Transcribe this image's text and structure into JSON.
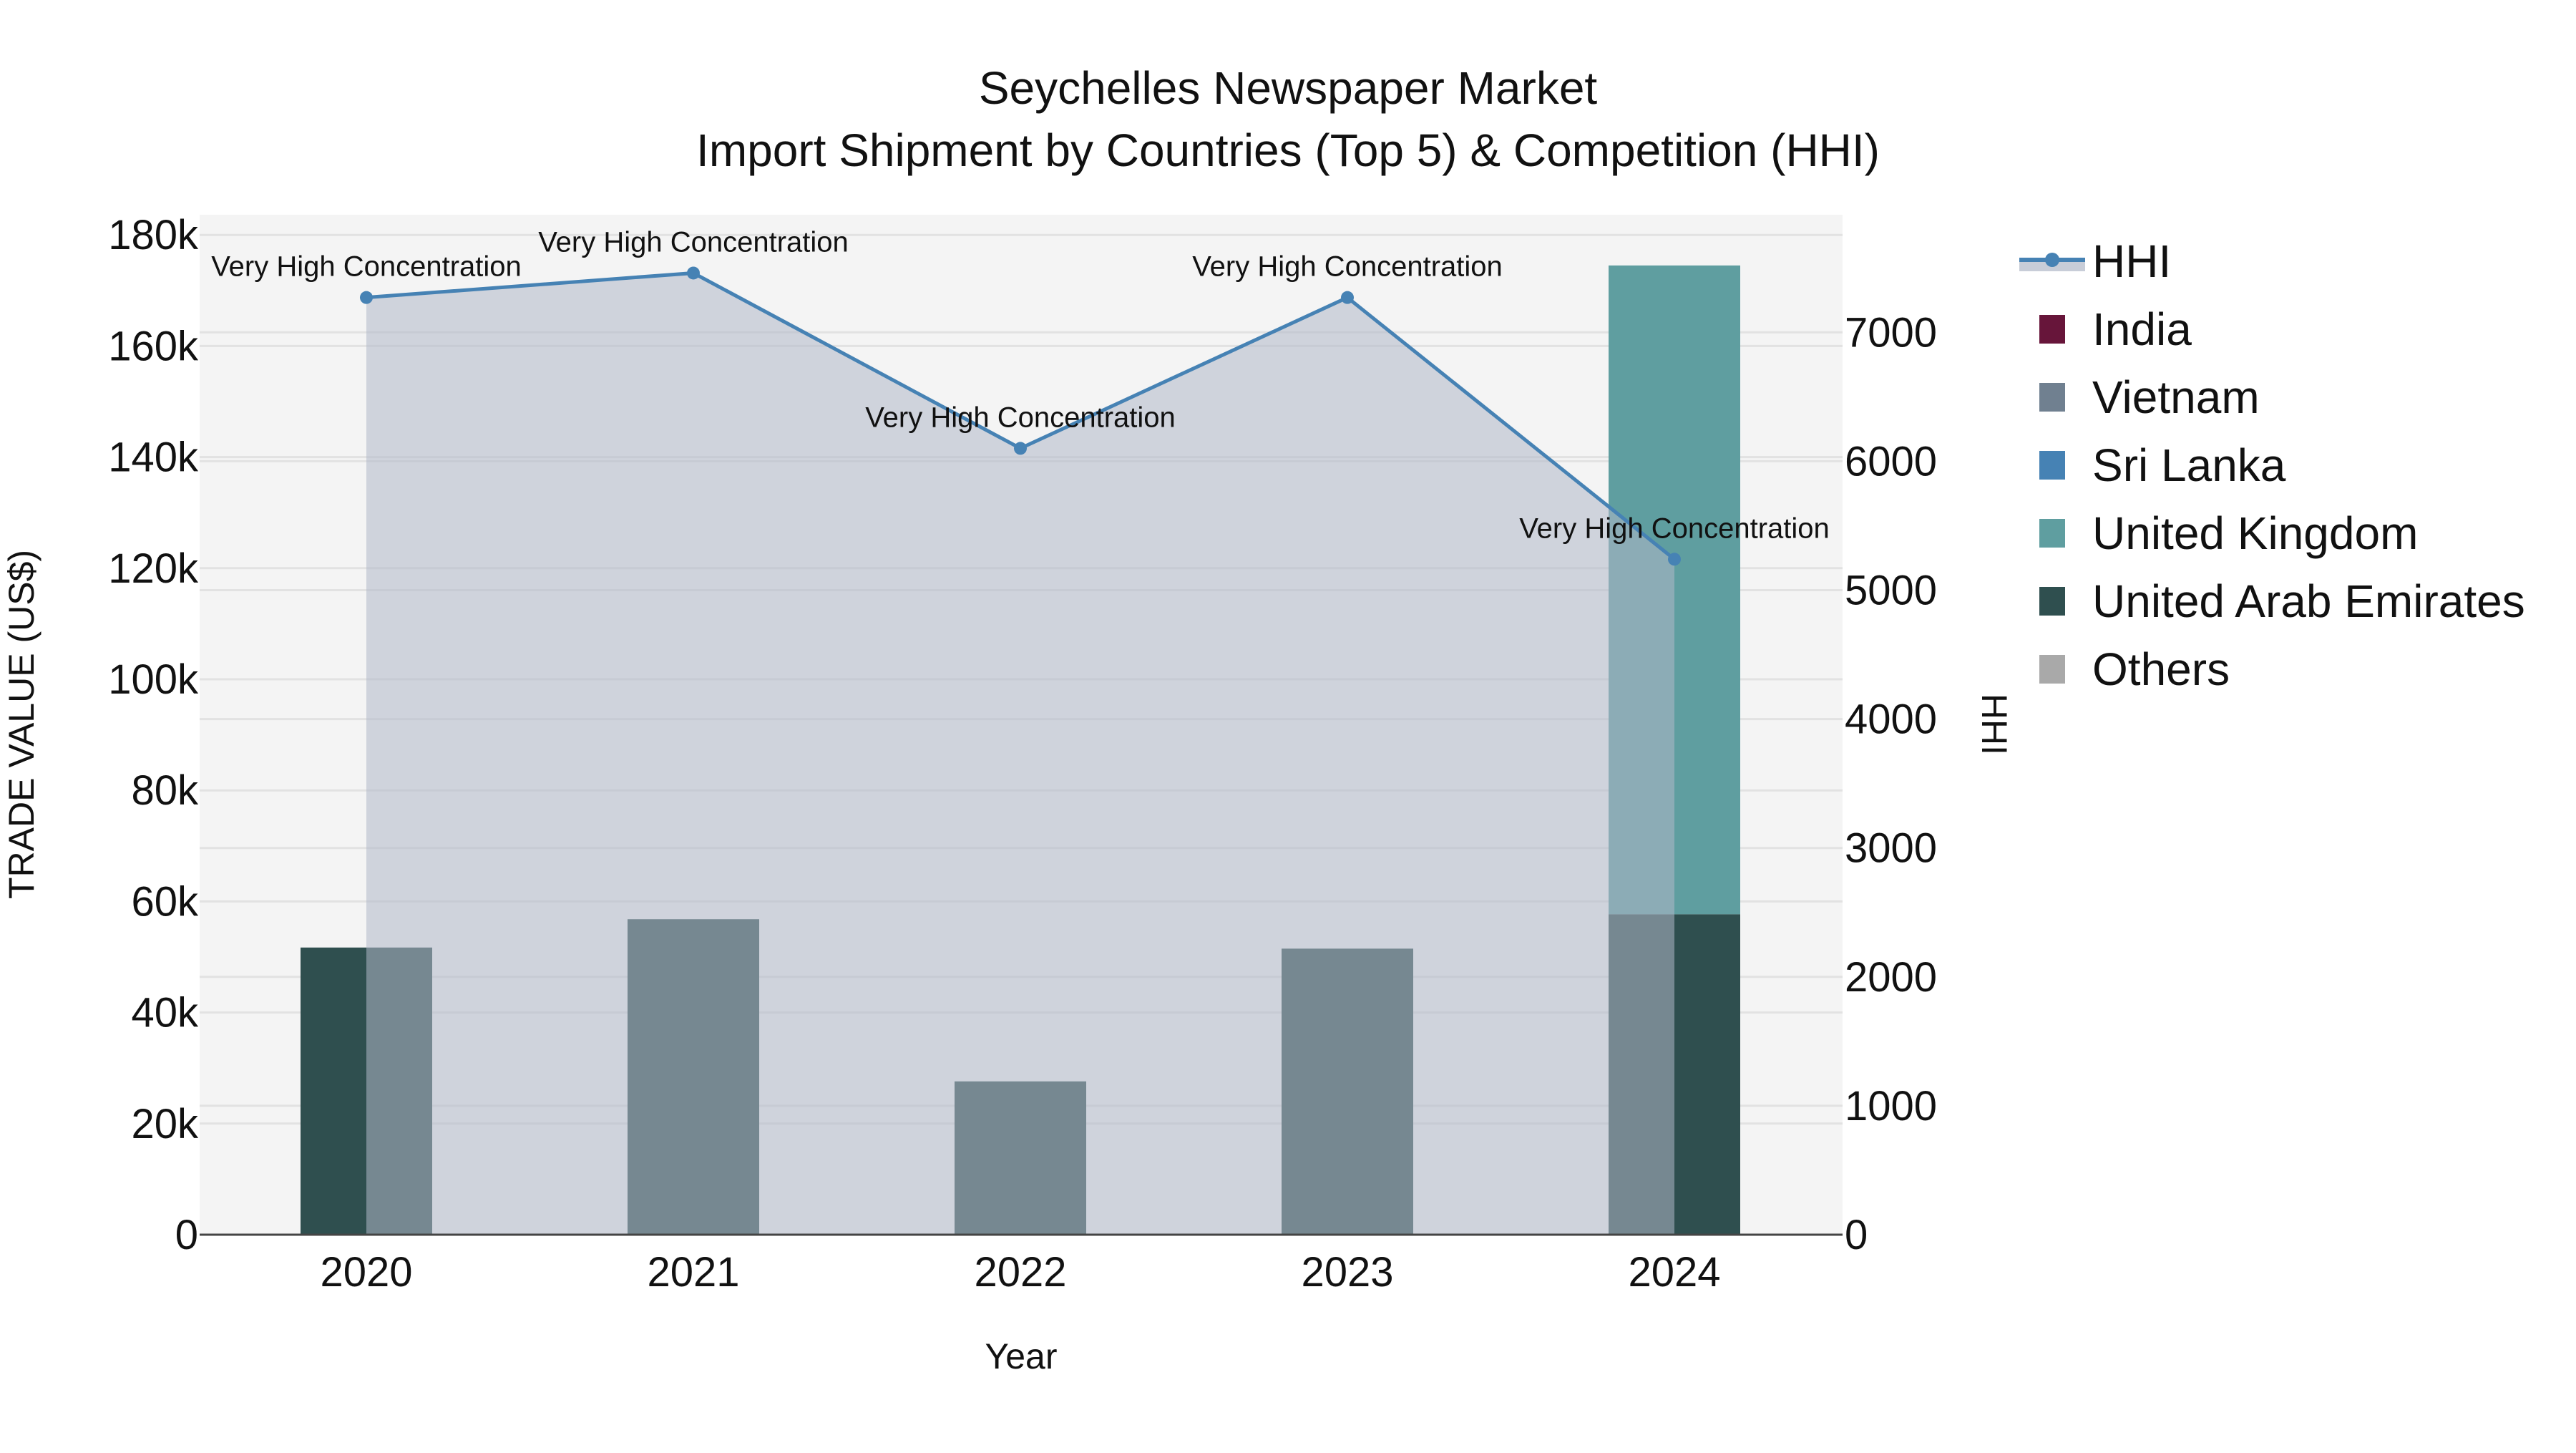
{
  "title": {
    "line1": "Seychelles Newspaper Market",
    "line2": "Import Shipment by Countries (Top 5) & Competition (HHI)"
  },
  "axes": {
    "x_label": "Year",
    "y_left_label": "TRADE VALUE (US$)",
    "y_right_label": "HHI",
    "x_ticks": [
      "2020",
      "2021",
      "2022",
      "2023",
      "2024"
    ],
    "y_left_ticks": [
      "0",
      "20k",
      "40k",
      "60k",
      "80k",
      "100k",
      "120k",
      "140k",
      "160k",
      "180k"
    ],
    "y_right_ticks": [
      "0",
      "1000",
      "2000",
      "3000",
      "4000",
      "5000",
      "6000",
      "7000"
    ]
  },
  "legend": {
    "items": [
      {
        "label": "HHI",
        "type": "line",
        "color": "#4682B4"
      },
      {
        "label": "India",
        "type": "bar",
        "color": "#67153A"
      },
      {
        "label": "Vietnam",
        "type": "bar",
        "color": "#708090"
      },
      {
        "label": "Sri Lanka",
        "type": "bar",
        "color": "#4682B4"
      },
      {
        "label": "United Kingdom",
        "type": "bar",
        "color": "#5F9EA0"
      },
      {
        "label": "United Arab Emirates",
        "type": "bar",
        "color": "#2F4F4F"
      },
      {
        "label": "Others",
        "type": "bar",
        "color": "#A9A9A9"
      }
    ]
  },
  "annotations": [
    "Very High Concentration",
    "Very High Concentration",
    "Very High Concentration",
    "Very High Concentration",
    "Very High Concentration"
  ],
  "colors": {
    "plot_bg": "#F4F4F4",
    "grid": "#E2E2E2",
    "hhi_line": "#4682B4",
    "hhi_fill": "rgba(176,184,200,0.55)",
    "uae": "#2F4F4F",
    "uk": "#5F9EA0"
  },
  "chart_data": {
    "type": "bar",
    "title": "Seychelles Newspaper Market — Import Shipment by Countries (Top 5) & Competition (HHI)",
    "xlabel": "Year",
    "ylabel": "TRADE VALUE (US$)",
    "y2label": "HHI",
    "categories": [
      "2020",
      "2021",
      "2022",
      "2023",
      "2024"
    ],
    "ylim": [
      0,
      180000
    ],
    "y2lim": [
      0,
      7700
    ],
    "stacked": true,
    "series": [
      {
        "name": "India",
        "type": "bar",
        "values": [
          0,
          0,
          0,
          0,
          0
        ]
      },
      {
        "name": "Vietnam",
        "type": "bar",
        "values": [
          0,
          0,
          0,
          0,
          0
        ]
      },
      {
        "name": "Sri Lanka",
        "type": "bar",
        "values": [
          0,
          0,
          0,
          0,
          0
        ]
      },
      {
        "name": "United Kingdom",
        "type": "bar",
        "values": [
          0,
          0,
          0,
          0,
          116800
        ]
      },
      {
        "name": "United Arab Emirates",
        "type": "bar",
        "values": [
          51700,
          56800,
          27600,
          51500,
          57700
        ]
      },
      {
        "name": "Others",
        "type": "bar",
        "values": [
          0,
          0,
          0,
          0,
          0
        ]
      },
      {
        "name": "HHI",
        "type": "line+area",
        "axis": "y2",
        "values": [
          7270,
          7460,
          6100,
          7270,
          5240
        ],
        "labels": [
          "Very High Concentration",
          "Very High Concentration",
          "Very High Concentration",
          "Very High Concentration",
          "Very High Concentration"
        ]
      }
    ],
    "legend_position": "right",
    "grid": true
  }
}
